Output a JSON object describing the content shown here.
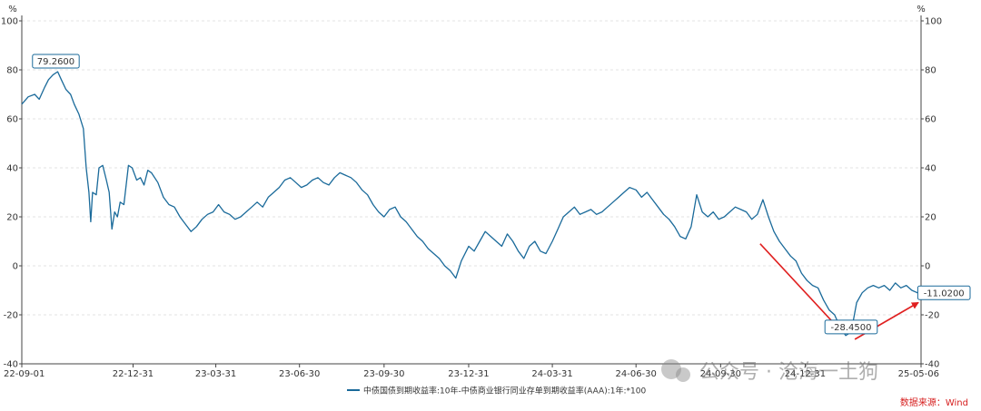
{
  "chart_data": {
    "type": "line",
    "y_unit_left": "%",
    "y_unit_right": "%",
    "ylim": [
      -40,
      100
    ],
    "y_ticks": [
      -40,
      -20,
      0,
      20,
      40,
      60,
      80,
      100
    ],
    "x_range": [
      "2022-09-01",
      "2025-05-06"
    ],
    "x_tick_labels": [
      "22-09-01",
      "22-12-31",
      "23-03-31",
      "23-06-30",
      "23-09-30",
      "23-12-31",
      "24-03-31",
      "24-06-30",
      "24-09-30",
      "24-12-31",
      "25-05-06"
    ],
    "x_tick_dates": [
      "2022-09-01",
      "2022-12-31",
      "2023-03-31",
      "2023-06-30",
      "2023-09-30",
      "2023-12-31",
      "2024-03-31",
      "2024-06-30",
      "2024-09-30",
      "2024-12-31",
      "2025-05-06"
    ],
    "grid": "horizontal-dashed",
    "legend_position": "bottom-center",
    "series": [
      {
        "name": "中债国债到期收益率:10年-中债商业银行同业存单到期收益率(AAA):1年:*100",
        "color": "#1a6a9a",
        "points": [
          [
            "2022-09-01",
            66
          ],
          [
            "2022-09-08",
            69
          ],
          [
            "2022-09-15",
            70
          ],
          [
            "2022-09-20",
            68
          ],
          [
            "2022-09-26",
            73
          ],
          [
            "2022-09-30",
            76
          ],
          [
            "2022-10-05",
            78
          ],
          [
            "2022-10-10",
            79.26
          ],
          [
            "2022-10-14",
            76
          ],
          [
            "2022-10-19",
            72
          ],
          [
            "2022-10-24",
            70
          ],
          [
            "2022-10-28",
            66
          ],
          [
            "2022-11-02",
            62
          ],
          [
            "2022-11-07",
            56
          ],
          [
            "2022-11-10",
            40
          ],
          [
            "2022-11-13",
            30
          ],
          [
            "2022-11-15",
            18
          ],
          [
            "2022-11-17",
            30
          ],
          [
            "2022-11-21",
            29
          ],
          [
            "2022-11-24",
            40
          ],
          [
            "2022-11-28",
            41
          ],
          [
            "2022-12-02",
            35
          ],
          [
            "2022-12-05",
            30
          ],
          [
            "2022-12-08",
            15
          ],
          [
            "2022-12-11",
            22
          ],
          [
            "2022-12-14",
            20
          ],
          [
            "2022-12-17",
            26
          ],
          [
            "2022-12-21",
            25
          ],
          [
            "2022-12-26",
            41
          ],
          [
            "2022-12-30",
            40
          ],
          [
            "2023-01-04",
            35
          ],
          [
            "2023-01-08",
            36
          ],
          [
            "2023-01-12",
            33
          ],
          [
            "2023-01-16",
            39
          ],
          [
            "2023-01-20",
            38
          ],
          [
            "2023-01-27",
            34
          ],
          [
            "2023-02-02",
            28
          ],
          [
            "2023-02-08",
            25
          ],
          [
            "2023-02-14",
            24
          ],
          [
            "2023-02-20",
            20
          ],
          [
            "2023-02-26",
            17
          ],
          [
            "2023-03-04",
            14
          ],
          [
            "2023-03-10",
            16
          ],
          [
            "2023-03-16",
            19
          ],
          [
            "2023-03-22",
            21
          ],
          [
            "2023-03-28",
            22
          ],
          [
            "2023-04-03",
            25
          ],
          [
            "2023-04-09",
            22
          ],
          [
            "2023-04-15",
            21
          ],
          [
            "2023-04-21",
            19
          ],
          [
            "2023-04-27",
            20
          ],
          [
            "2023-05-03",
            22
          ],
          [
            "2023-05-09",
            24
          ],
          [
            "2023-05-15",
            26
          ],
          [
            "2023-05-21",
            24
          ],
          [
            "2023-05-27",
            28
          ],
          [
            "2023-06-02",
            30
          ],
          [
            "2023-06-08",
            32
          ],
          [
            "2023-06-14",
            35
          ],
          [
            "2023-06-20",
            36
          ],
          [
            "2023-06-26",
            34
          ],
          [
            "2023-07-02",
            32
          ],
          [
            "2023-07-08",
            33
          ],
          [
            "2023-07-14",
            35
          ],
          [
            "2023-07-20",
            36
          ],
          [
            "2023-07-26",
            34
          ],
          [
            "2023-08-01",
            33
          ],
          [
            "2023-08-07",
            36
          ],
          [
            "2023-08-13",
            38
          ],
          [
            "2023-08-19",
            37
          ],
          [
            "2023-08-25",
            36
          ],
          [
            "2023-08-31",
            34
          ],
          [
            "2023-09-06",
            31
          ],
          [
            "2023-09-12",
            29
          ],
          [
            "2023-09-18",
            25
          ],
          [
            "2023-09-24",
            22
          ],
          [
            "2023-09-30",
            20
          ],
          [
            "2023-10-06",
            23
          ],
          [
            "2023-10-12",
            24
          ],
          [
            "2023-10-18",
            20
          ],
          [
            "2023-10-24",
            18
          ],
          [
            "2023-10-30",
            15
          ],
          [
            "2023-11-05",
            12
          ],
          [
            "2023-11-11",
            10
          ],
          [
            "2023-11-17",
            7
          ],
          [
            "2023-11-23",
            5
          ],
          [
            "2023-11-29",
            3
          ],
          [
            "2023-12-05",
            0
          ],
          [
            "2023-12-11",
            -2
          ],
          [
            "2023-12-17",
            -5
          ],
          [
            "2023-12-23",
            2
          ],
          [
            "2023-12-31",
            8
          ],
          [
            "2024-01-06",
            6
          ],
          [
            "2024-01-12",
            10
          ],
          [
            "2024-01-18",
            14
          ],
          [
            "2024-01-24",
            12
          ],
          [
            "2024-01-30",
            10
          ],
          [
            "2024-02-05",
            8
          ],
          [
            "2024-02-11",
            13
          ],
          [
            "2024-02-17",
            10
          ],
          [
            "2024-02-23",
            6
          ],
          [
            "2024-02-29",
            3
          ],
          [
            "2024-03-06",
            8
          ],
          [
            "2024-03-12",
            10
          ],
          [
            "2024-03-18",
            6
          ],
          [
            "2024-03-24",
            5
          ],
          [
            "2024-03-31",
            10
          ],
          [
            "2024-04-06",
            15
          ],
          [
            "2024-04-12",
            20
          ],
          [
            "2024-04-18",
            22
          ],
          [
            "2024-04-24",
            24
          ],
          [
            "2024-04-30",
            21
          ],
          [
            "2024-05-06",
            22
          ],
          [
            "2024-05-12",
            23
          ],
          [
            "2024-05-18",
            21
          ],
          [
            "2024-05-24",
            22
          ],
          [
            "2024-05-30",
            24
          ],
          [
            "2024-06-05",
            26
          ],
          [
            "2024-06-11",
            28
          ],
          [
            "2024-06-17",
            30
          ],
          [
            "2024-06-23",
            32
          ],
          [
            "2024-06-30",
            31
          ],
          [
            "2024-07-06",
            28
          ],
          [
            "2024-07-12",
            30
          ],
          [
            "2024-07-18",
            27
          ],
          [
            "2024-07-24",
            24
          ],
          [
            "2024-07-30",
            21
          ],
          [
            "2024-08-05",
            19
          ],
          [
            "2024-08-11",
            16
          ],
          [
            "2024-08-17",
            12
          ],
          [
            "2024-08-23",
            11
          ],
          [
            "2024-08-29",
            16
          ],
          [
            "2024-09-04",
            29
          ],
          [
            "2024-09-10",
            22
          ],
          [
            "2024-09-16",
            20
          ],
          [
            "2024-09-22",
            22
          ],
          [
            "2024-09-28",
            19
          ],
          [
            "2024-10-04",
            20
          ],
          [
            "2024-10-10",
            22
          ],
          [
            "2024-10-16",
            24
          ],
          [
            "2024-10-22",
            23
          ],
          [
            "2024-10-28",
            22
          ],
          [
            "2024-11-03",
            19
          ],
          [
            "2024-11-09",
            21
          ],
          [
            "2024-11-15",
            27
          ],
          [
            "2024-11-21",
            20
          ],
          [
            "2024-11-27",
            14
          ],
          [
            "2024-12-03",
            10
          ],
          [
            "2024-12-09",
            7
          ],
          [
            "2024-12-15",
            4
          ],
          [
            "2024-12-21",
            2
          ],
          [
            "2024-12-27",
            -3
          ],
          [
            "2025-01-02",
            -6
          ],
          [
            "2025-01-08",
            -8
          ],
          [
            "2025-01-14",
            -9
          ],
          [
            "2025-01-20",
            -14
          ],
          [
            "2025-01-26",
            -18
          ],
          [
            "2025-02-01",
            -20
          ],
          [
            "2025-02-07",
            -25
          ],
          [
            "2025-02-13",
            -28.45
          ],
          [
            "2025-02-19",
            -27
          ],
          [
            "2025-02-25",
            -15
          ],
          [
            "2025-03-03",
            -11
          ],
          [
            "2025-03-09",
            -9
          ],
          [
            "2025-03-15",
            -8
          ],
          [
            "2025-03-21",
            -9
          ],
          [
            "2025-03-27",
            -8
          ],
          [
            "2025-04-02",
            -10
          ],
          [
            "2025-04-08",
            -7
          ],
          [
            "2025-04-14",
            -9
          ],
          [
            "2025-04-20",
            -8
          ],
          [
            "2025-04-26",
            -10
          ],
          [
            "2025-05-02",
            -11
          ],
          [
            "2025-05-06",
            -11.02
          ]
        ]
      }
    ],
    "callouts": [
      {
        "date": "2022-10-10",
        "value": 79.26,
        "label": "79.2600"
      },
      {
        "date": "2025-02-13",
        "value": -28.45,
        "label": "-28.4500"
      },
      {
        "date": "2025-05-06",
        "value": -11.02,
        "label": "-11.0200"
      }
    ],
    "annotation_arrows": [
      {
        "from": [
          "2024-11-12",
          9
        ],
        "to": [
          "2025-02-09",
          -27
        ],
        "color": "#e02020"
      },
      {
        "from": [
          "2025-02-23",
          -30
        ],
        "to": [
          "2025-05-03",
          -15
        ],
        "color": "#e02020"
      }
    ],
    "source": "数据来源：Wind",
    "watermark": "公众号 · 沧海一土狗"
  }
}
